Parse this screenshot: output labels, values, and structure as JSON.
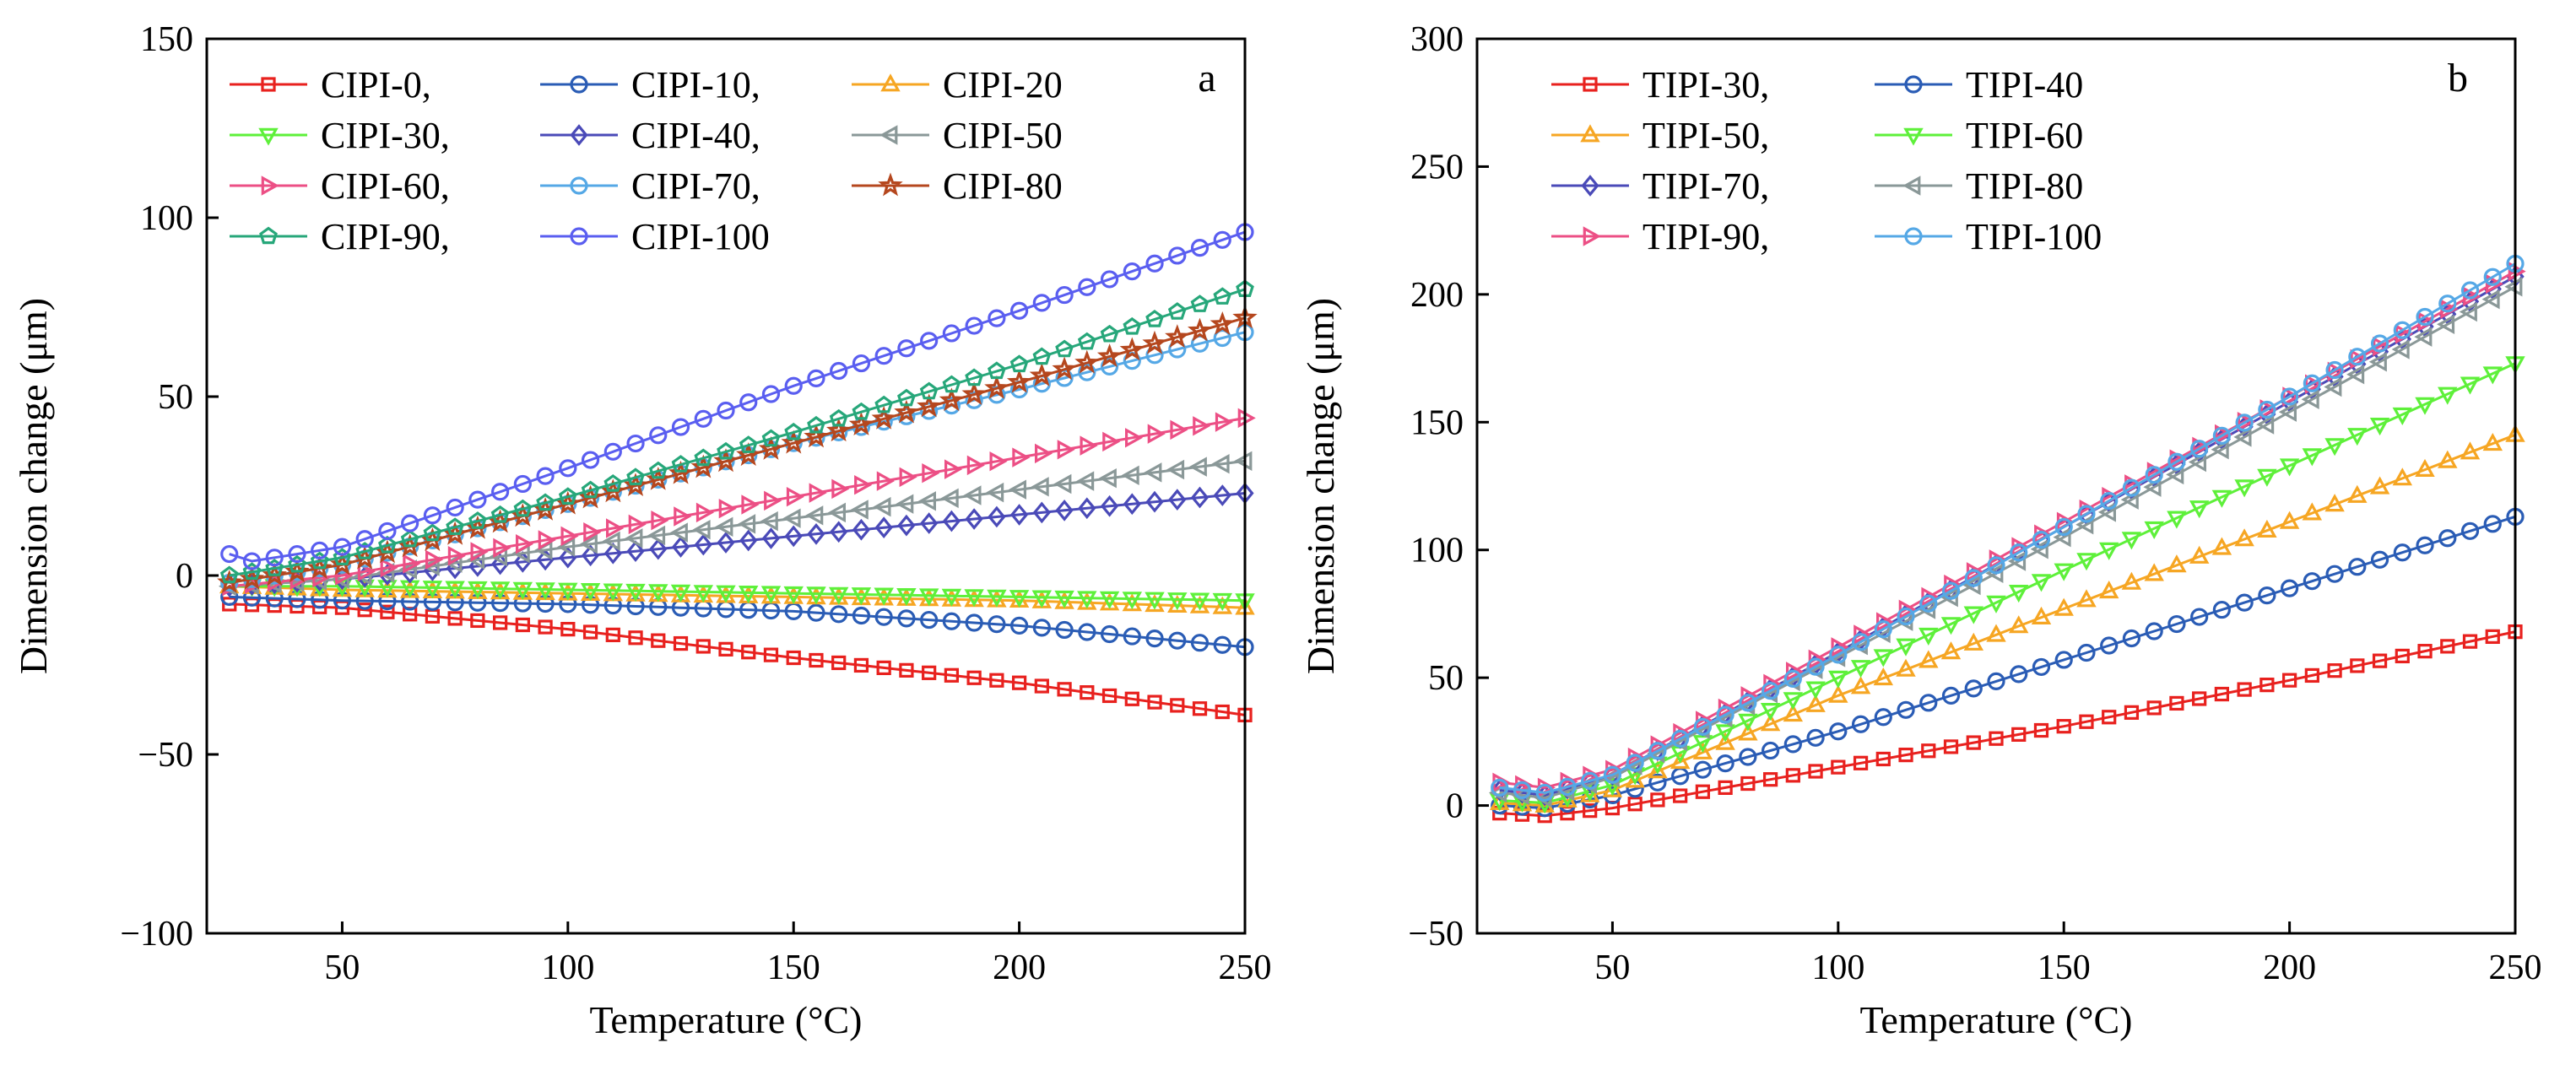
{
  "chart_data": [
    {
      "type": "line",
      "panel_label": "a",
      "xlabel": "Temperature (°C)",
      "ylabel": "Dimension change (μm)",
      "xlim": [
        20,
        250
      ],
      "ylim": [
        -100,
        150
      ],
      "xticks": [
        50,
        100,
        150,
        200,
        250
      ],
      "yticks": [
        -100,
        -50,
        0,
        50,
        100,
        150
      ],
      "xtick_labels": [
        "50",
        "100",
        "150",
        "200",
        "250"
      ],
      "ytick_labels": [
        "−100",
        "−50",
        "0",
        "50",
        "100",
        "150"
      ],
      "grid": false,
      "legend_position": "top-left",
      "legend_columns": 3,
      "series": [
        {
          "name": "CIPI-0",
          "legend": "CIPI-0,",
          "color": "#e8211e",
          "marker": "square",
          "points": [
            [
              25,
              -8
            ],
            [
              50,
              -9
            ],
            [
              100,
              -15
            ],
            [
              150,
              -23
            ],
            [
              200,
              -30
            ],
            [
              250,
              -39
            ]
          ]
        },
        {
          "name": "CIPI-10",
          "legend": "CIPI-10,",
          "color": "#2a5cb5",
          "marker": "circle",
          "points": [
            [
              25,
              -6
            ],
            [
              50,
              -7
            ],
            [
              100,
              -8
            ],
            [
              150,
              -10
            ],
            [
              200,
              -14
            ],
            [
              250,
              -20
            ]
          ]
        },
        {
          "name": "CIPI-20",
          "legend": "CIPI-20",
          "color": "#f6a623",
          "marker": "triangle-up",
          "points": [
            [
              25,
              -3
            ],
            [
              50,
              -4
            ],
            [
              100,
              -5
            ],
            [
              150,
              -6
            ],
            [
              200,
              -7
            ],
            [
              250,
              -9
            ]
          ]
        },
        {
          "name": "CIPI-30",
          "legend": "CIPI-30,",
          "color": "#5ef03a",
          "marker": "triangle-down",
          "points": [
            [
              25,
              -3
            ],
            [
              50,
              -3
            ],
            [
              100,
              -4
            ],
            [
              150,
              -5
            ],
            [
              200,
              -6
            ],
            [
              250,
              -7
            ]
          ]
        },
        {
          "name": "CIPI-40",
          "legend": "CIPI-40,",
          "color": "#4a4ab8",
          "marker": "diamond",
          "points": [
            [
              25,
              -3
            ],
            [
              50,
              -1
            ],
            [
              100,
              5
            ],
            [
              150,
              11
            ],
            [
              200,
              17
            ],
            [
              250,
              23
            ]
          ]
        },
        {
          "name": "CIPI-50",
          "legend": "CIPI-50",
          "color": "#8a9898",
          "marker": "triangle-left",
          "points": [
            [
              25,
              -3
            ],
            [
              50,
              -1
            ],
            [
              100,
              8
            ],
            [
              150,
              16
            ],
            [
              200,
              24
            ],
            [
              250,
              32
            ]
          ]
        },
        {
          "name": "CIPI-60",
          "legend": "CIPI-60,",
          "color": "#ec4f85",
          "marker": "triangle-right",
          "points": [
            [
              25,
              -3
            ],
            [
              50,
              0
            ],
            [
              100,
              11
            ],
            [
              150,
              22
            ],
            [
              200,
              33
            ],
            [
              250,
              44
            ]
          ]
        },
        {
          "name": "CIPI-70",
          "legend": "CIPI-70,",
          "color": "#55a8e6",
          "marker": "circle",
          "points": [
            [
              25,
              -2
            ],
            [
              50,
              3
            ],
            [
              100,
              20
            ],
            [
              150,
              37
            ],
            [
              200,
              52
            ],
            [
              250,
              68
            ]
          ]
        },
        {
          "name": "CIPI-80",
          "legend": "CIPI-80",
          "color": "#b5471e",
          "marker": "star",
          "points": [
            [
              25,
              -2
            ],
            [
              50,
              3
            ],
            [
              100,
              20
            ],
            [
              150,
              37
            ],
            [
              200,
              54
            ],
            [
              250,
              72
            ]
          ]
        },
        {
          "name": "CIPI-90",
          "legend": "CIPI-90,",
          "color": "#27a77a",
          "marker": "pentagon",
          "points": [
            [
              25,
              0
            ],
            [
              50,
              5
            ],
            [
              100,
              22
            ],
            [
              150,
              40
            ],
            [
              200,
              59
            ],
            [
              250,
              80
            ]
          ]
        },
        {
          "name": "CIPI-100",
          "legend": "CIPI-100",
          "color": "#5a5ef0",
          "marker": "circle",
          "points": [
            [
              25,
              6
            ],
            [
              30,
              4
            ],
            [
              50,
              8
            ],
            [
              100,
              30
            ],
            [
              150,
              53
            ],
            [
              200,
              74
            ],
            [
              250,
              96
            ]
          ]
        }
      ]
    },
    {
      "type": "line",
      "panel_label": "b",
      "xlabel": "Temperature (°C)",
      "ylabel": "Dimension change (μm)",
      "xlim": [
        20,
        250
      ],
      "ylim": [
        -50,
        300
      ],
      "xticks": [
        50,
        100,
        150,
        200,
        250
      ],
      "yticks": [
        -50,
        0,
        50,
        100,
        150,
        200,
        250,
        300
      ],
      "xtick_labels": [
        "50",
        "100",
        "150",
        "200",
        "250"
      ],
      "ytick_labels": [
        "−50",
        "0",
        "50",
        "100",
        "150",
        "200",
        "250",
        "300"
      ],
      "grid": false,
      "legend_position": "top-left",
      "legend_columns": 2,
      "series": [
        {
          "name": "TIPI-30",
          "legend": "TIPI-30,",
          "color": "#e8211e",
          "marker": "square",
          "points": [
            [
              25,
              -3
            ],
            [
              35,
              -4
            ],
            [
              50,
              -1
            ],
            [
              100,
              15
            ],
            [
              150,
              31
            ],
            [
              200,
              49
            ],
            [
              250,
              68
            ]
          ]
        },
        {
          "name": "TIPI-40",
          "legend": "TIPI-40",
          "color": "#2a5cb5",
          "marker": "circle",
          "points": [
            [
              25,
              0
            ],
            [
              35,
              -1
            ],
            [
              50,
              4
            ],
            [
              100,
              29
            ],
            [
              150,
              57
            ],
            [
              200,
              85
            ],
            [
              250,
              113
            ]
          ]
        },
        {
          "name": "TIPI-50",
          "legend": "TIPI-50,",
          "color": "#f6a623",
          "marker": "triangle-up",
          "points": [
            [
              25,
              1
            ],
            [
              35,
              0
            ],
            [
              50,
              6
            ],
            [
              100,
              43
            ],
            [
              150,
              77
            ],
            [
              200,
              111
            ],
            [
              250,
              145
            ]
          ]
        },
        {
          "name": "TIPI-60",
          "legend": "TIPI-60",
          "color": "#5ef03a",
          "marker": "triangle-down",
          "points": [
            [
              25,
              2
            ],
            [
              35,
              1
            ],
            [
              50,
              8
            ],
            [
              100,
              50
            ],
            [
              150,
              92
            ],
            [
              200,
              133
            ],
            [
              250,
              173
            ]
          ]
        },
        {
          "name": "TIPI-70",
          "legend": "TIPI-70,",
          "color": "#4a4ab8",
          "marker": "diamond",
          "points": [
            [
              25,
              6
            ],
            [
              35,
              4
            ],
            [
              50,
              12
            ],
            [
              100,
              60
            ],
            [
              150,
              109
            ],
            [
              200,
              158
            ],
            [
              250,
              207
            ]
          ]
        },
        {
          "name": "TIPI-80",
          "legend": "TIPI-80",
          "color": "#8a9898",
          "marker": "triangle-left",
          "points": [
            [
              25,
              5
            ],
            [
              35,
              3
            ],
            [
              50,
              11
            ],
            [
              100,
              58
            ],
            [
              150,
              105
            ],
            [
              200,
              154
            ],
            [
              250,
              203
            ]
          ]
        },
        {
          "name": "TIPI-90",
          "legend": "TIPI-90,",
          "color": "#ec4f85",
          "marker": "triangle-right",
          "points": [
            [
              25,
              9
            ],
            [
              35,
              7
            ],
            [
              50,
              14
            ],
            [
              100,
              62
            ],
            [
              150,
              111
            ],
            [
              200,
              160
            ],
            [
              250,
              209
            ]
          ]
        },
        {
          "name": "TIPI-100",
          "legend": "TIPI-100",
          "color": "#55a8e6",
          "marker": "circle",
          "points": [
            [
              25,
              7
            ],
            [
              35,
              5
            ],
            [
              50,
              12
            ],
            [
              100,
              59
            ],
            [
              150,
              109
            ],
            [
              200,
              160
            ],
            [
              250,
              212
            ]
          ]
        }
      ]
    }
  ]
}
